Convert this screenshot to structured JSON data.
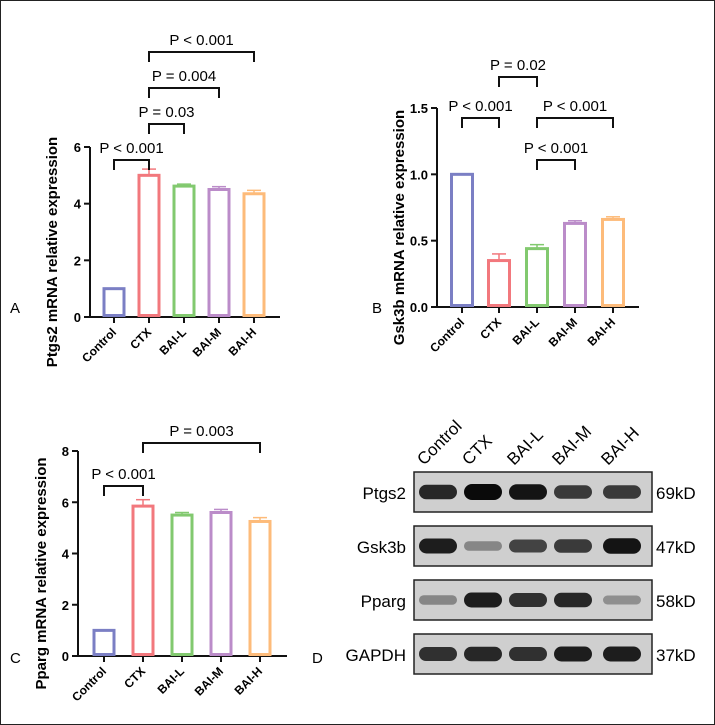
{
  "panel_letters": [
    "A",
    "B",
    "C",
    "D"
  ],
  "chart_data": [
    {
      "type": "bar",
      "panel": "A",
      "title": "",
      "xlabel": "",
      "ylabel": "Ptgs2 mRNA relative expression",
      "ylim": [
        0,
        6
      ],
      "yticks": [
        0,
        2,
        4,
        6
      ],
      "categories": [
        "Control",
        "CTX",
        "BAI-L",
        "BAI-M",
        "BAI-H"
      ],
      "values": [
        1.0,
        5.0,
        4.62,
        4.5,
        4.35
      ],
      "errors": [
        0,
        0.22,
        0.07,
        0.1,
        0.12
      ],
      "colors": [
        "#7b7fc4",
        "#f2787d",
        "#82c96f",
        "#bb8cc9",
        "#fdbb7a"
      ],
      "comparisons": [
        {
          "from": 0,
          "to": 1,
          "label": "P < 0.001"
        },
        {
          "from": 1,
          "to": 2,
          "label": "P = 0.03"
        },
        {
          "from": 1,
          "to": 3,
          "label": "P = 0.004"
        },
        {
          "from": 1,
          "to": 4,
          "label": "P < 0.001"
        }
      ]
    },
    {
      "type": "bar",
      "panel": "B",
      "title": "",
      "xlabel": "",
      "ylabel": "Gsk3b mRNA relative expression",
      "ylim": [
        0,
        1.5
      ],
      "yticks": [
        "0.0",
        "0.5",
        "1.0",
        "1.5"
      ],
      "categories": [
        "Control",
        "CTX",
        "BAI-L",
        "BAI-M",
        "BAI-H"
      ],
      "values": [
        1.0,
        0.35,
        0.44,
        0.63,
        0.66
      ],
      "errors": [
        0,
        0.05,
        0.03,
        0.02,
        0.02
      ],
      "colors": [
        "#7b7fc4",
        "#f2787d",
        "#82c96f",
        "#bb8cc9",
        "#fdbb7a"
      ],
      "comparisons": [
        {
          "from": 0,
          "to": 1,
          "label": "P < 0.001"
        },
        {
          "from": 1,
          "to": 2,
          "label": "P = 0.02"
        },
        {
          "from": 2,
          "to": 4,
          "label": "P < 0.001"
        },
        {
          "from": 2,
          "to": 3,
          "label": "P < 0.001"
        }
      ]
    },
    {
      "type": "bar",
      "panel": "C",
      "title": "",
      "xlabel": "",
      "ylabel": "Pparg mRNA relative expression",
      "ylim": [
        0,
        8
      ],
      "yticks": [
        0,
        2,
        4,
        6,
        8
      ],
      "categories": [
        "Control",
        "CTX",
        "BAI-L",
        "BAI-M",
        "BAI-H"
      ],
      "values": [
        1.0,
        5.85,
        5.5,
        5.6,
        5.25
      ],
      "errors": [
        0,
        0.25,
        0.1,
        0.12,
        0.15
      ],
      "colors": [
        "#7b7fc4",
        "#f2787d",
        "#82c96f",
        "#bb8cc9",
        "#fdbb7a"
      ],
      "comparisons": [
        {
          "from": 0,
          "to": 1,
          "label": "P < 0.001"
        },
        {
          "from": 1,
          "to": 4,
          "label": "P = 0.003"
        }
      ]
    }
  ],
  "western_blot": {
    "panel": "D",
    "lanes": [
      "Control",
      "CTX",
      "BAI-L",
      "BAI-M",
      "BAI-H"
    ],
    "rows": [
      {
        "protein": "Ptgs2",
        "size": "69kD",
        "intensity": [
          0.85,
          1.0,
          0.95,
          0.75,
          0.75
        ]
      },
      {
        "protein": "Gsk3b",
        "size": "47kD",
        "intensity": [
          0.9,
          0.35,
          0.7,
          0.75,
          0.95
        ]
      },
      {
        "protein": "Pparg",
        "size": "58kD",
        "intensity": [
          0.35,
          0.9,
          0.8,
          0.85,
          0.3
        ]
      },
      {
        "protein": "GAPDH",
        "size": "37kD",
        "intensity": [
          0.8,
          0.85,
          0.8,
          0.9,
          0.9
        ]
      }
    ]
  }
}
